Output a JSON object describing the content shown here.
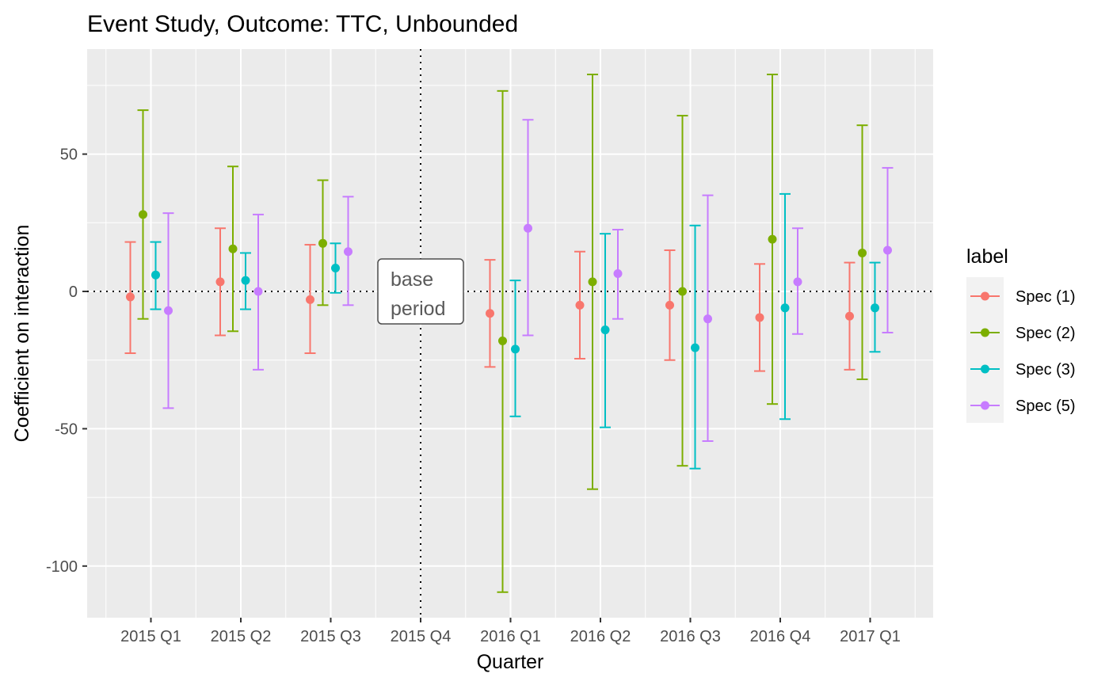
{
  "chart_data": {
    "type": "errorbar",
    "title": "Event Study, Outcome: TTC, Unbounded",
    "xlabel": "Quarter",
    "ylabel": "Coefficient on interaction",
    "categories": [
      "2015 Q1",
      "2015 Q2",
      "2015 Q3",
      "2015 Q4",
      "2016 Q1",
      "2016 Q2",
      "2016 Q3",
      "2016 Q4",
      "2017 Q1"
    ],
    "ylim": [
      -120,
      77
    ],
    "yticks": [
      50,
      0,
      -50,
      -100
    ],
    "ytick_labels": [
      "50",
      "0",
      "-50",
      "-100"
    ],
    "grid": true,
    "reference_lines": {
      "y": 0,
      "x_category": "2015 Q4",
      "style": "dotted"
    },
    "annotation": {
      "lines": [
        "base",
        "period"
      ],
      "x_category": "2015 Q4",
      "y": 0
    },
    "legend": {
      "title": "label",
      "placement": "right"
    },
    "series": [
      {
        "name": "Spec (1)",
        "color": "#F8766D",
        "points": [
          {
            "x": "2015 Q1",
            "y": -2,
            "lo": -22.5,
            "hi": 18
          },
          {
            "x": "2015 Q2",
            "y": 3.5,
            "lo": -16,
            "hi": 23
          },
          {
            "x": "2015 Q3",
            "y": -3,
            "lo": -22.5,
            "hi": 17
          },
          {
            "x": "2016 Q1",
            "y": -8,
            "lo": -27.5,
            "hi": 11.5
          },
          {
            "x": "2016 Q2",
            "y": -5,
            "lo": -24.5,
            "hi": 14.5
          },
          {
            "x": "2016 Q3",
            "y": -5,
            "lo": -25,
            "hi": 15
          },
          {
            "x": "2016 Q4",
            "y": -9.5,
            "lo": -29,
            "hi": 10
          },
          {
            "x": "2017 Q1",
            "y": -9,
            "lo": -28.5,
            "hi": 10.5
          }
        ]
      },
      {
        "name": "Spec (2)",
        "color": "#7CAE00",
        "points": [
          {
            "x": "2015 Q1",
            "y": 28,
            "lo": -10,
            "hi": 66
          },
          {
            "x": "2015 Q2",
            "y": 15.5,
            "lo": -14.5,
            "hi": 45.5
          },
          {
            "x": "2015 Q3",
            "y": 17.5,
            "lo": -5,
            "hi": 40.5
          },
          {
            "x": "2016 Q1",
            "y": -18,
            "lo": -109.5,
            "hi": 73
          },
          {
            "x": "2016 Q2",
            "y": 3.5,
            "lo": -72,
            "hi": 79
          },
          {
            "x": "2016 Q3",
            "y": 0,
            "lo": -63.5,
            "hi": 64
          },
          {
            "x": "2016 Q4",
            "y": 19,
            "lo": -41,
            "hi": 79
          },
          {
            "x": "2017 Q1",
            "y": 14,
            "lo": -32,
            "hi": 60.5
          }
        ]
      },
      {
        "name": "Spec (3)",
        "color": "#00BFC4",
        "points": [
          {
            "x": "2015 Q1",
            "y": 6,
            "lo": -6.5,
            "hi": 18
          },
          {
            "x": "2015 Q2",
            "y": 4,
            "lo": -6.5,
            "hi": 14
          },
          {
            "x": "2015 Q3",
            "y": 8.5,
            "lo": -0.5,
            "hi": 17.5
          },
          {
            "x": "2016 Q1",
            "y": -21,
            "lo": -45.5,
            "hi": 4
          },
          {
            "x": "2016 Q2",
            "y": -14,
            "lo": -49.5,
            "hi": 21
          },
          {
            "x": "2016 Q3",
            "y": -20.5,
            "lo": -64.5,
            "hi": 24
          },
          {
            "x": "2016 Q4",
            "y": -6,
            "lo": -46.5,
            "hi": 35.5
          },
          {
            "x": "2017 Q1",
            "y": -6,
            "lo": -22,
            "hi": 10.5
          }
        ]
      },
      {
        "name": "Spec (5)",
        "color": "#C77CFF",
        "points": [
          {
            "x": "2015 Q1",
            "y": -7,
            "lo": -42.5,
            "hi": 28.5
          },
          {
            "x": "2015 Q2",
            "y": 0,
            "lo": -28.5,
            "hi": 28
          },
          {
            "x": "2015 Q3",
            "y": 14.5,
            "lo": -5,
            "hi": 34.5
          },
          {
            "x": "2016 Q1",
            "y": 23,
            "lo": -16,
            "hi": 62.5
          },
          {
            "x": "2016 Q2",
            "y": 6.5,
            "lo": -10,
            "hi": 22.5
          },
          {
            "x": "2016 Q3",
            "y": -10,
            "lo": -54.5,
            "hi": 35
          },
          {
            "x": "2016 Q4",
            "y": 3.5,
            "lo": -15.5,
            "hi": 23
          },
          {
            "x": "2017 Q1",
            "y": 15,
            "lo": -15,
            "hi": 45
          }
        ]
      }
    ]
  }
}
